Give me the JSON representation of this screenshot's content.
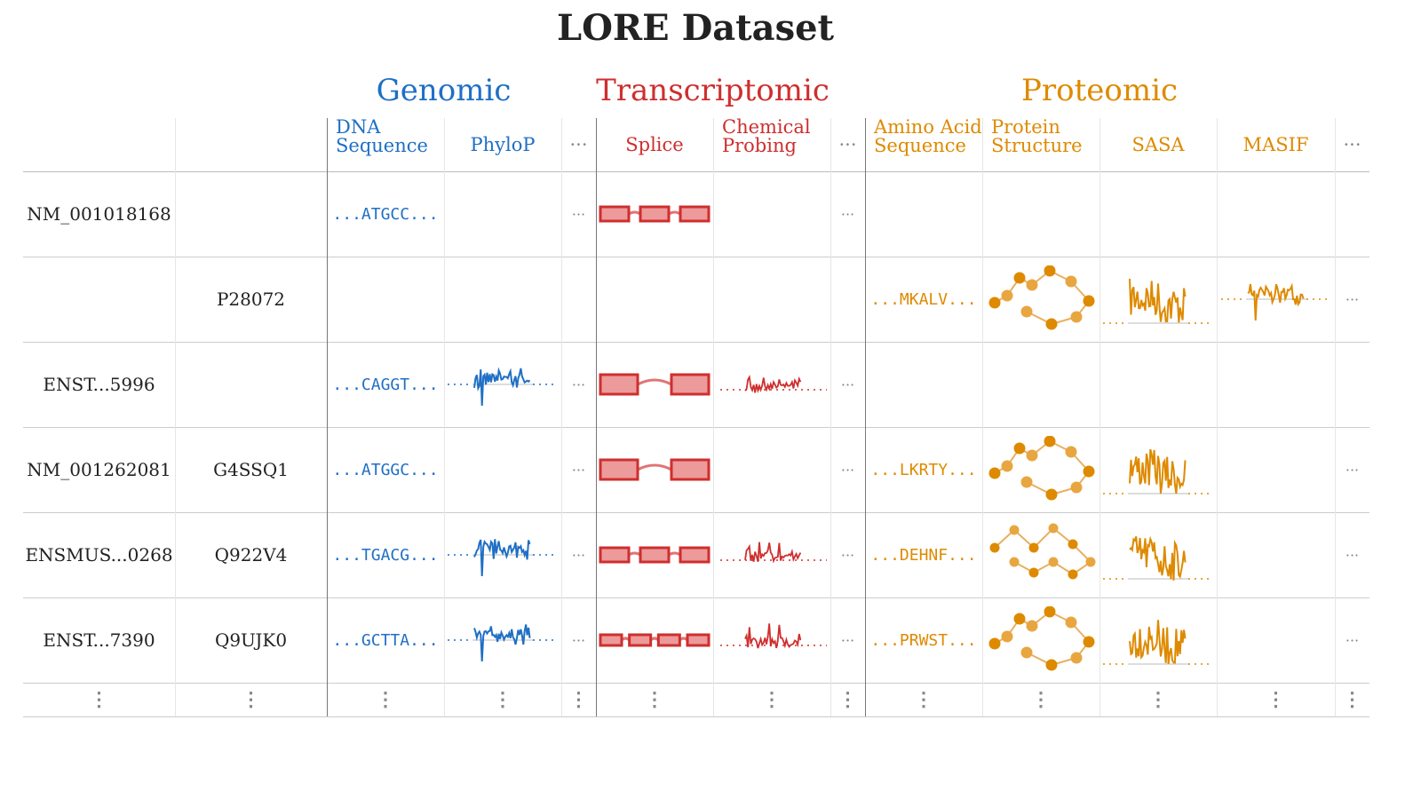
{
  "title": "LORE Dataset",
  "colors": {
    "genomic": "#1f6fc5",
    "transcriptomic": "#cf2e2e",
    "proteomic": "#de8a00"
  },
  "groups": [
    {
      "label": "Genomic",
      "color": "#1f6fc5",
      "columns": [
        "DNA\nSequence",
        "PhyloP",
        "···"
      ]
    },
    {
      "label": "Transcriptomic",
      "color": "#cf2e2e",
      "columns": [
        "Splice",
        "Chemical\nProbing",
        "···"
      ]
    },
    {
      "label": "Proteomic",
      "color": "#de8a00",
      "columns": [
        "Amino Acid\nSequence",
        "Protein\nStructure",
        "SASA",
        "MASIF",
        "···"
      ]
    }
  ],
  "more_symbol": "···",
  "row_more_symbol": "⋮",
  "rows": [
    {
      "transcript": "NM_001018168",
      "protein": "",
      "dna": "...ATGCC...",
      "phylop": false,
      "g_more": true,
      "splice_exons": 3,
      "chem": false,
      "t_more": true,
      "aa": "",
      "structure": false,
      "sasa": false,
      "masif": false,
      "p_more": false
    },
    {
      "transcript": "",
      "protein": "P28072",
      "dna": "",
      "phylop": false,
      "g_more": false,
      "splice_exons": 0,
      "chem": false,
      "t_more": false,
      "aa": "...MKALV...",
      "structure": true,
      "sasa": true,
      "masif": true,
      "p_more": true
    },
    {
      "transcript": "ENST...5996",
      "protein": "",
      "dna": "...CAGGT...",
      "phylop": true,
      "g_more": true,
      "splice_exons": 2,
      "chem": true,
      "t_more": true,
      "aa": "",
      "structure": false,
      "sasa": false,
      "masif": false,
      "p_more": false
    },
    {
      "transcript": "NM_001262081",
      "protein": "G4SSQ1",
      "dna": "...ATGGC...",
      "phylop": false,
      "g_more": true,
      "splice_exons": 2,
      "chem": false,
      "t_more": true,
      "aa": "...LKRTY...",
      "structure": true,
      "sasa": true,
      "masif": false,
      "p_more": true
    },
    {
      "transcript": "ENSMUS...0268",
      "protein": "Q922V4",
      "dna": "...TGACG...",
      "phylop": true,
      "g_more": true,
      "splice_exons": 3,
      "chem": true,
      "t_more": true,
      "aa": "...DEHNF...",
      "structure": true,
      "sasa": true,
      "masif": false,
      "p_more": true
    },
    {
      "transcript": "ENST...7390",
      "protein": "Q9UJK0",
      "dna": "...GCTTA...",
      "phylop": true,
      "g_more": true,
      "splice_exons": 4,
      "chem": true,
      "t_more": true,
      "aa": "...PRWST...",
      "structure": true,
      "sasa": true,
      "masif": false,
      "p_more": true
    }
  ]
}
